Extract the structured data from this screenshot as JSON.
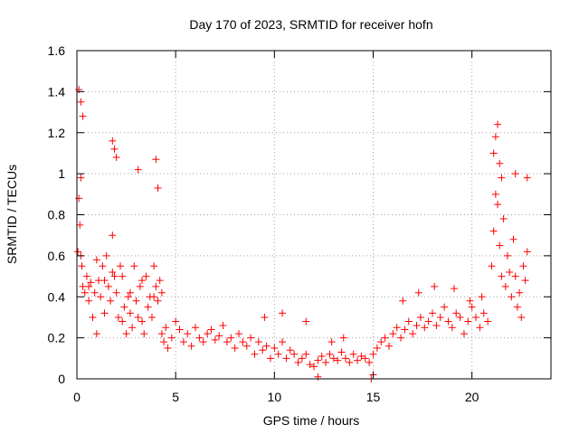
{
  "chart_data": {
    "type": "scatter",
    "title": "Day 170 of 2023, SRMTID for receiver hofn",
    "xlabel": "GPS time / hours",
    "ylabel": "SRMTID / TECUs",
    "xlim": [
      0,
      24
    ],
    "ylim": [
      0,
      1.6
    ],
    "xticks": [
      0,
      5,
      10,
      15,
      20
    ],
    "yticks": [
      0,
      0.2,
      0.4,
      0.6,
      0.8,
      1,
      1.2,
      1.4,
      1.6
    ],
    "xtick_labels": [
      "0",
      "5",
      "10",
      "15",
      "20"
    ],
    "ytick_labels": [
      "0",
      "0.2",
      "0.4",
      "0.6",
      "0.8",
      "1",
      "1.2",
      "1.4",
      "1.6"
    ],
    "grid": true,
    "marker": "+",
    "color": "#ff0000",
    "series": [
      {
        "name": "SRMTID",
        "x": [
          0.05,
          0.1,
          0.15,
          0.2,
          0.25,
          0.3,
          0.4,
          0.5,
          0.6,
          0.7,
          0.8,
          0.9,
          1.0,
          1.1,
          1.2,
          1.3,
          1.4,
          1.5,
          1.6,
          1.7,
          1.8,
          1.9,
          2.0,
          2.1,
          2.2,
          2.3,
          2.4,
          2.5,
          2.6,
          2.7,
          2.8,
          2.9,
          3.0,
          3.1,
          3.2,
          3.3,
          3.4,
          3.5,
          3.6,
          3.7,
          3.8,
          3.9,
          4.0,
          4.1,
          4.2,
          4.3,
          4.4,
          4.5,
          4.6,
          4.8,
          5.0,
          5.2,
          5.4,
          5.6,
          5.8,
          6.0,
          6.2,
          6.4,
          6.6,
          6.8,
          7.0,
          7.2,
          7.4,
          7.6,
          7.8,
          8.0,
          8.2,
          8.4,
          8.6,
          8.8,
          9.0,
          9.2,
          9.4,
          9.6,
          9.8,
          10.0,
          10.2,
          10.4,
          10.6,
          10.8,
          11.0,
          11.2,
          11.4,
          11.6,
          11.8,
          12.0,
          12.2,
          12.4,
          12.6,
          12.8,
          13.0,
          13.2,
          13.4,
          13.6,
          13.8,
          14.0,
          14.2,
          14.4,
          14.6,
          14.8,
          15.0,
          15.2,
          15.4,
          15.6,
          15.8,
          16.0,
          16.2,
          16.4,
          16.6,
          16.8,
          17.0,
          17.2,
          17.4,
          17.6,
          17.8,
          18.0,
          18.2,
          18.4,
          18.6,
          18.8,
          19.0,
          19.2,
          19.4,
          19.6,
          19.8,
          20.0,
          20.2,
          20.4,
          20.6,
          20.8,
          21.0,
          21.1,
          21.2,
          21.3,
          21.4,
          21.5,
          21.6,
          21.7,
          21.8,
          21.9,
          22.0,
          22.1,
          22.2,
          22.3,
          22.4,
          22.5,
          22.6,
          22.7,
          22.8,
          0.1,
          0.2,
          0.3,
          1.8,
          1.9,
          2.0,
          3.1,
          4.0,
          4.1,
          21.1,
          21.2,
          21.3,
          21.4,
          21.5,
          22.2,
          22.8,
          0.2,
          0.6,
          1.0,
          1.4,
          1.8,
          2.3,
          2.7,
          3.3,
          3.9,
          4.3,
          12.2,
          14.9,
          15.0,
          9.5,
          10.4,
          11.6,
          12.9,
          13.5,
          16.5,
          17.3,
          18.1,
          19.1,
          19.9,
          20.5
        ],
        "y": [
          0.62,
          0.88,
          0.75,
          0.98,
          0.55,
          0.45,
          0.42,
          0.5,
          0.38,
          0.47,
          0.3,
          0.42,
          0.22,
          0.48,
          0.4,
          0.55,
          0.32,
          0.6,
          0.45,
          0.38,
          0.7,
          0.5,
          0.42,
          0.3,
          0.55,
          0.28,
          0.35,
          0.22,
          0.4,
          0.32,
          0.25,
          0.55,
          0.38,
          0.3,
          0.45,
          0.28,
          0.22,
          0.5,
          0.35,
          0.4,
          0.3,
          0.55,
          0.45,
          0.38,
          0.48,
          0.22,
          0.18,
          0.25,
          0.15,
          0.2,
          0.28,
          0.24,
          0.18,
          0.22,
          0.16,
          0.25,
          0.2,
          0.18,
          0.22,
          0.24,
          0.19,
          0.21,
          0.26,
          0.18,
          0.2,
          0.15,
          0.22,
          0.18,
          0.16,
          0.2,
          0.12,
          0.18,
          0.14,
          0.16,
          0.1,
          0.15,
          0.12,
          0.18,
          0.1,
          0.14,
          0.12,
          0.08,
          0.1,
          0.12,
          0.07,
          0.06,
          0.09,
          0.11,
          0.08,
          0.12,
          0.1,
          0.09,
          0.13,
          0.1,
          0.08,
          0.12,
          0.09,
          0.11,
          0.1,
          0.08,
          0.12,
          0.15,
          0.18,
          0.2,
          0.16,
          0.22,
          0.25,
          0.2,
          0.24,
          0.28,
          0.22,
          0.26,
          0.3,
          0.25,
          0.28,
          0.32,
          0.26,
          0.3,
          0.35,
          0.28,
          0.25,
          0.32,
          0.3,
          0.22,
          0.28,
          0.35,
          0.3,
          0.25,
          0.32,
          0.28,
          0.55,
          0.72,
          0.9,
          0.85,
          0.65,
          0.5,
          0.78,
          0.45,
          0.6,
          0.52,
          0.4,
          0.68,
          0.5,
          0.35,
          0.42,
          0.3,
          0.55,
          0.48,
          0.62,
          1.41,
          1.35,
          1.28,
          1.16,
          1.12,
          1.08,
          1.02,
          1.07,
          0.93,
          1.1,
          1.18,
          1.24,
          1.05,
          0.98,
          1.0,
          0.98,
          0.6,
          0.45,
          0.58,
          0.48,
          0.52,
          0.5,
          0.42,
          0.48,
          0.4,
          0.42,
          0.01,
          0.0,
          0.02,
          0.3,
          0.32,
          0.28,
          0.18,
          0.2,
          0.38,
          0.42,
          0.45,
          0.44,
          0.38,
          0.4
        ]
      }
    ]
  }
}
